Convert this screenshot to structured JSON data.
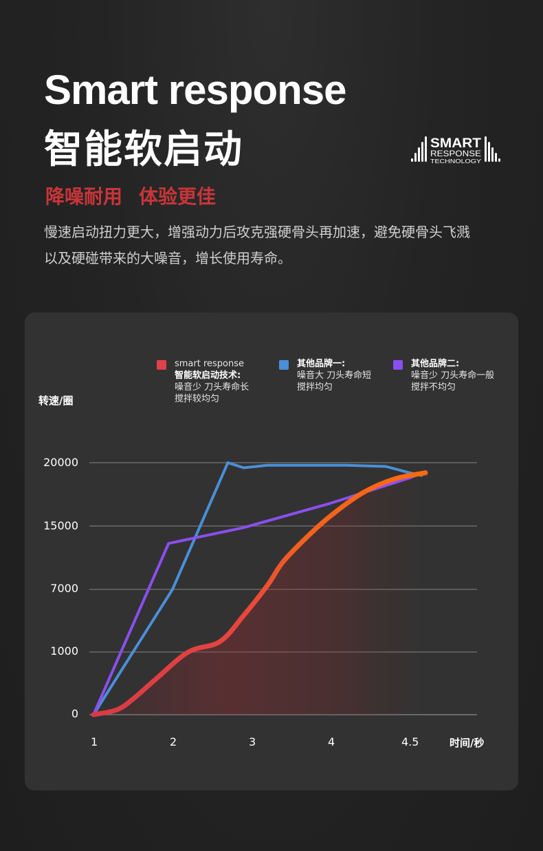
{
  "header": {
    "title_en": "Smart response",
    "title_zh": "智能软启动",
    "tagline": [
      "降噪耐用",
      "体验更佳"
    ],
    "description": [
      "慢速启动扭力更大，增强动力后攻克强硬骨头再加速，避免硬骨头飞溅",
      "以及硬碰带来的大噪音，增长使用寿命。"
    ]
  },
  "logo": {
    "line1": "SMART",
    "line2": "RESPONSE",
    "line3": "TECHNOLOGY"
  },
  "chart_data": {
    "type": "line",
    "ylabel": "转速/圈",
    "xlabel": "时间/秒",
    "x_ticks": [
      "1",
      "2",
      "3",
      "4",
      "4.5"
    ],
    "y_ticks": [
      "0",
      "1000",
      "7000",
      "15000",
      "20000"
    ],
    "grid": true,
    "legend_position": "top",
    "colors": {
      "smart": "#e0404a",
      "brand1": "#4a8fd8",
      "brand2": "#8a4ff0"
    },
    "series": [
      {
        "key": "smart",
        "name": "smart response",
        "desc": [
          "智能软启动技术:",
          "噪音少 刀头寿命长",
          "搅拌较均匀"
        ],
        "color": "#e0404a",
        "points": [
          [
            1,
            0
          ],
          [
            1.3,
            80
          ],
          [
            1.5,
            250
          ],
          [
            1.8,
            580
          ],
          [
            2.2,
            1000
          ],
          [
            2.6,
            2000
          ],
          [
            2.9,
            4500
          ],
          [
            3.2,
            7500
          ],
          [
            3.4,
            10500
          ],
          [
            3.7,
            13600
          ],
          [
            4.0,
            15800
          ],
          [
            4.4,
            17600
          ],
          [
            4.8,
            18700
          ],
          [
            5.2,
            19200
          ]
        ]
      },
      {
        "key": "brand1",
        "name": "其他品牌一:",
        "desc": [
          "噪音大 刀头寿命短",
          "搅拌均匀"
        ],
        "color": "#4a8fd8",
        "points": [
          [
            1,
            0
          ],
          [
            2,
            7000
          ],
          [
            2.7,
            20000
          ],
          [
            2.9,
            19600
          ],
          [
            3.2,
            19800
          ],
          [
            4.2,
            19800
          ],
          [
            4.7,
            19700
          ],
          [
            5.0,
            19200
          ],
          [
            5.15,
            19000
          ]
        ]
      },
      {
        "key": "brand2",
        "name": "其他品牌二:",
        "desc": [
          "噪音少 刀头寿命一般",
          "搅拌不均匀"
        ],
        "color": "#8a4ff0",
        "points": [
          [
            1,
            0
          ],
          [
            1.95,
            12800
          ],
          [
            2.9,
            14800
          ],
          [
            4.0,
            16800
          ],
          [
            5.0,
            18800
          ],
          [
            5.2,
            19300
          ]
        ]
      }
    ]
  }
}
